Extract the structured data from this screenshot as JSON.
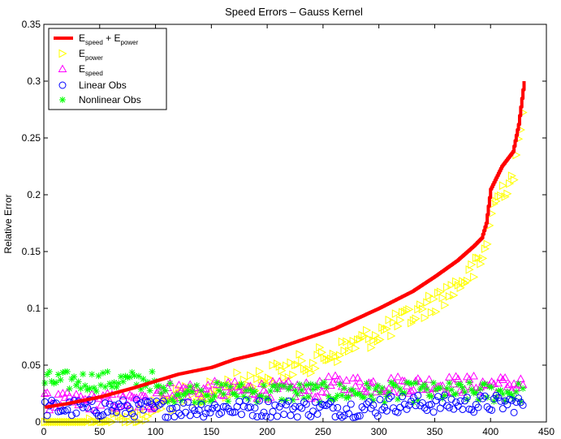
{
  "chart_data": {
    "type": "scatter",
    "title": "Speed Errors – Gauss Kernel",
    "xlabel": "",
    "ylabel": "Relative Error",
    "xlim": [
      0,
      450
    ],
    "ylim": [
      0,
      0.35
    ],
    "xticks": [
      0,
      50,
      100,
      150,
      200,
      250,
      300,
      350,
      400,
      450
    ],
    "yticks": [
      0,
      0.05,
      0.1,
      0.15,
      0.2,
      0.25,
      0.3,
      0.35
    ],
    "xtick_labels": [
      "0",
      "50",
      "100",
      "150",
      "200",
      "250",
      "300",
      "350",
      "400",
      "450"
    ],
    "ytick_labels": [
      "0",
      "0.05",
      "0.1",
      "0.15",
      "0.2",
      "0.25",
      "0.3",
      "0.35"
    ],
    "grid": false,
    "legend_position": "top-left",
    "n_points": 430,
    "series": [
      {
        "key": "total",
        "name": "E_speed + E_power",
        "legend": {
          "main": "E",
          "sub1": "speed",
          "mid": " + E",
          "sub2": "power"
        },
        "marker": "line",
        "color": "#ff0000",
        "curve": [
          [
            1,
            0.013
          ],
          [
            20,
            0.016
          ],
          [
            50,
            0.022
          ],
          [
            80,
            0.03
          ],
          [
            100,
            0.036
          ],
          [
            120,
            0.042
          ],
          [
            150,
            0.048
          ],
          [
            170,
            0.055
          ],
          [
            200,
            0.062
          ],
          [
            230,
            0.072
          ],
          [
            260,
            0.082
          ],
          [
            300,
            0.1
          ],
          [
            330,
            0.115
          ],
          [
            350,
            0.128
          ],
          [
            370,
            0.142
          ],
          [
            385,
            0.155
          ],
          [
            392,
            0.162
          ],
          [
            396,
            0.175
          ],
          [
            400,
            0.205
          ],
          [
            410,
            0.225
          ],
          [
            420,
            0.238
          ],
          [
            425,
            0.262
          ],
          [
            430,
            0.3
          ]
        ]
      },
      {
        "key": "power",
        "name": "E_power",
        "legend": {
          "main": "E",
          "sub1": "power"
        },
        "marker": "triangle-right",
        "color": "#ffff00"
      },
      {
        "key": "speed",
        "name": "E_speed",
        "legend": {
          "main": "E",
          "sub1": "speed"
        },
        "marker": "triangle-up",
        "color": "#ff00ff"
      },
      {
        "key": "linear",
        "name": "Linear Obs",
        "legend": {
          "main": "Linear Obs"
        },
        "marker": "circle",
        "color": "#0000ff"
      },
      {
        "key": "nonlinear",
        "name": "Nonlinear Obs",
        "legend": {
          "main": "Nonlinear Obs"
        },
        "marker": "asterisk",
        "color": "#00ff00"
      }
    ]
  }
}
